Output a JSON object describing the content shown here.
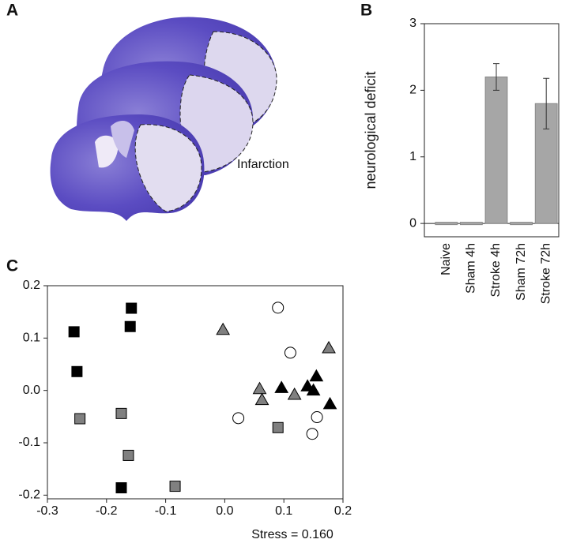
{
  "panel_a": {
    "panel_label": "A",
    "annotation": "Infarction"
  },
  "chart_data": [
    {
      "type": "bar",
      "panel_label": "B",
      "y_label": "neurological deficit",
      "categories": [
        "Naive",
        "Sham 4h",
        "Stroke 4h",
        "Sham 72h",
        "Stroke 72h"
      ],
      "values": [
        0,
        0,
        2.2,
        0,
        1.8
      ],
      "errors": [
        0,
        0,
        0.2,
        0,
        0.38
      ],
      "color": "#a6a6a6",
      "ylim": [
        -0.2,
        3
      ],
      "yticks": [
        0,
        1,
        2,
        3
      ],
      "zero_line": true
    },
    {
      "type": "scatter",
      "panel_label": "C",
      "annotation": "Stress = 0.160",
      "xlim": [
        -0.3,
        0.2
      ],
      "ylim": [
        -0.207,
        0.2
      ],
      "xticks": [
        -0.3,
        -0.2,
        -0.1,
        {
          "value": 0,
          "label": "0.0"
        },
        0.1,
        0.2
      ],
      "yticks": [
        -0.2,
        -0.1,
        {
          "value": 0,
          "label": "0.0"
        },
        0.1,
        0.2
      ],
      "series": [
        {
          "marker": "square",
          "color": "#000000",
          "x": [
            -0.158,
            -0.16,
            -0.255,
            -0.25,
            -0.175
          ],
          "values": [
            0.157,
            0.122,
            0.112,
            0.036,
            -0.186
          ]
        },
        {
          "marker": "square",
          "color": "#808080",
          "x": [
            -0.245,
            -0.175,
            -0.163,
            -0.084,
            0.09
          ],
          "values": [
            -0.054,
            -0.044,
            -0.124,
            -0.183,
            -0.071
          ]
        },
        {
          "marker": "triangle",
          "color": "#808080",
          "x": [
            -0.003,
            0.176,
            0.059,
            0.063,
            0.118
          ],
          "values": [
            0.116,
            0.081,
            0.003,
            -0.018,
            -0.008
          ]
        },
        {
          "marker": "triangle",
          "color": "#000000",
          "x": [
            0.096,
            0.14,
            0.155,
            0.15,
            0.178
          ],
          "values": [
            0.005,
            0.008,
            0.027,
            0,
            -0.026
          ]
        },
        {
          "marker": "circle",
          "color": "#ffffff",
          "x": [
            0.09,
            0.111,
            0.023,
            0.156,
            0.148
          ],
          "values": [
            0.158,
            0.072,
            -0.053,
            -0.051,
            -0.083
          ]
        }
      ]
    }
  ]
}
